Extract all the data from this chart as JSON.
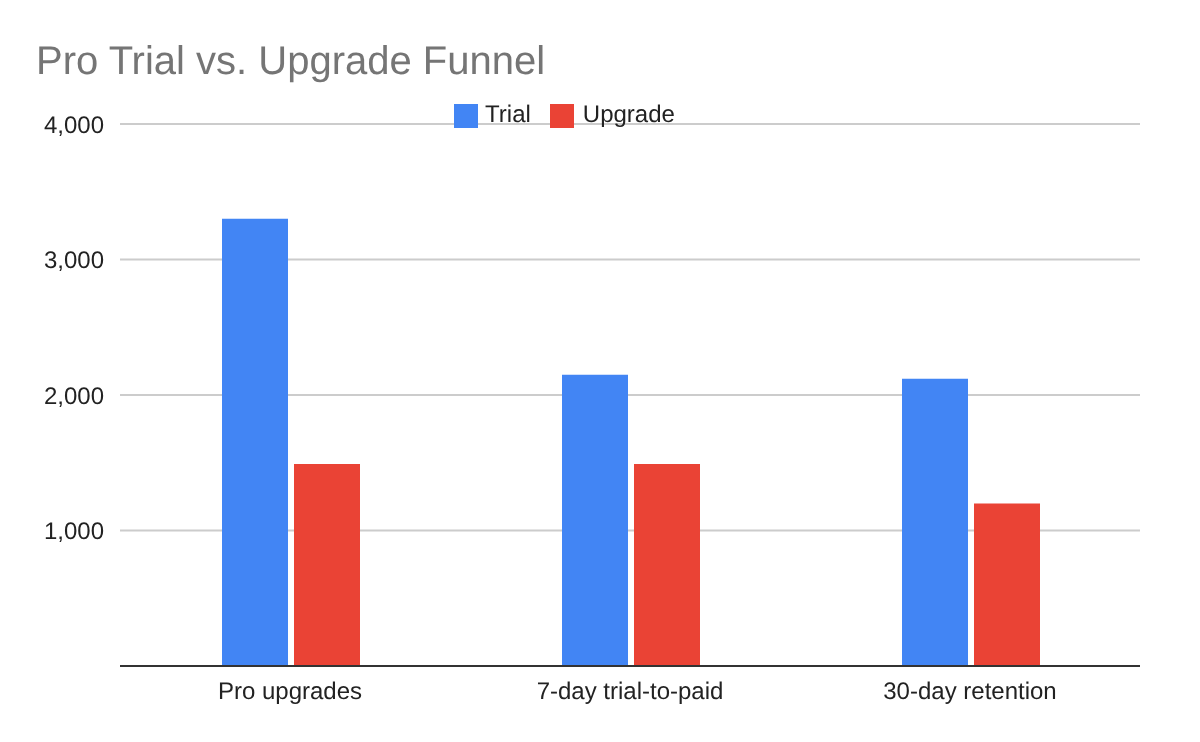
{
  "chart_data": {
    "type": "bar",
    "title": "Pro Trial vs. Upgrade Funnel",
    "categories": [
      "Pro upgrades",
      "7-day trial-to-paid",
      "30-day retention"
    ],
    "series": [
      {
        "name": "Trial",
        "color": "#4285f4",
        "values": [
          3300,
          2150,
          2120
        ]
      },
      {
        "name": "Upgrade",
        "color": "#ea4335",
        "values": [
          1490,
          1490,
          1200
        ]
      }
    ],
    "ylim": [
      0,
      4000
    ],
    "yticks": [
      {
        "value": 0,
        "label": null
      },
      {
        "value": 1000,
        "label": "1,000"
      },
      {
        "value": 2000,
        "label": "2,000"
      },
      {
        "value": 3000,
        "label": "3,000"
      },
      {
        "value": 4000,
        "label": "4,000"
      }
    ],
    "grid": "y",
    "legend": "top"
  }
}
